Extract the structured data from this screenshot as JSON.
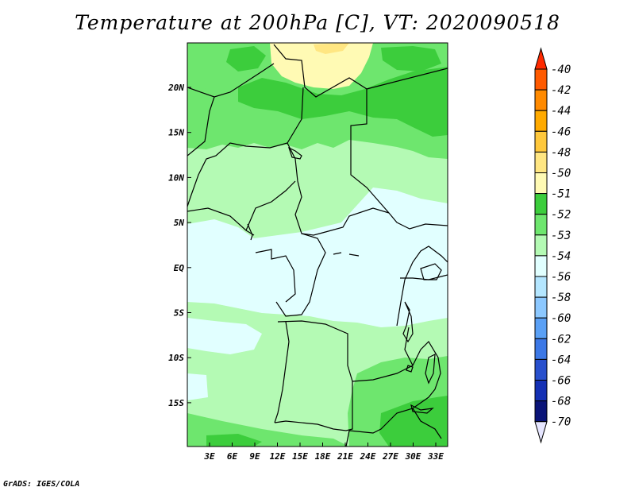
{
  "title": "Temperature at 200hPa [C], VT: 2020090518",
  "credit": "GrADS: IGES/COLA",
  "map": {
    "lon_labels": [
      "3E",
      "6E",
      "9E",
      "12E",
      "15E",
      "18E",
      "21E",
      "24E",
      "27E",
      "30E",
      "33E"
    ],
    "lat_labels": [
      "20N",
      "15N",
      "10N",
      "5N",
      "EQ",
      "5S",
      "10S",
      "15S"
    ]
  },
  "colorbar": {
    "labels": [
      "-40",
      "-42",
      "-44",
      "-46",
      "-48",
      "-50",
      "-51",
      "-52",
      "-53",
      "-54",
      "-56",
      "-58",
      "-60",
      "-62",
      "-64",
      "-66",
      "-68",
      "-70"
    ],
    "colors": [
      "#ff2a00",
      "#ff5a00",
      "#ff8a00",
      "#ffaa00",
      "#ffc83c",
      "#ffe682",
      "#fffab4",
      "#3ccd3c",
      "#6ee66e",
      "#b4fab4",
      "#e1ffff",
      "#b4e6ff",
      "#8cc8ff",
      "#5aa0f5",
      "#3c78e6",
      "#2850cd",
      "#1430b4",
      "#0a1478",
      "#e6e6ff"
    ]
  }
}
